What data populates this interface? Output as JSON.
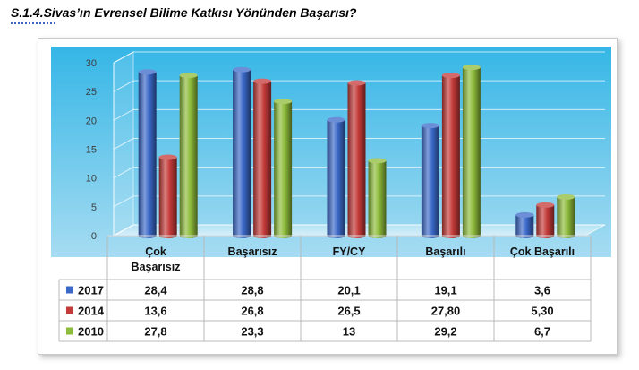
{
  "title": "S.1.4.Sivas’ın Evrensel Bilime Katkısı Yönünden Başarısı?",
  "chart_data": {
    "type": "bar",
    "categories": [
      [
        "Çok",
        "Başarısız"
      ],
      [
        "Başarısız"
      ],
      [
        "FY/CY"
      ],
      [
        "Başarılı"
      ],
      [
        "Çok Başarılı"
      ]
    ],
    "ylim": [
      0,
      30
    ],
    "yticks": [
      0,
      5,
      10,
      15,
      20,
      25,
      30
    ],
    "series": [
      {
        "name": "2017",
        "color": "#3a68c8",
        "values": [
          28.4,
          28.8,
          20.1,
          19.1,
          3.6
        ],
        "labels": [
          "28,4",
          "28,8",
          "20,1",
          "19,1",
          "3,6"
        ]
      },
      {
        "name": "2014",
        "color": "#c33a38",
        "values": [
          13.6,
          26.8,
          26.5,
          27.8,
          5.3
        ],
        "labels": [
          "13,6",
          "26,8",
          "26,5",
          "27,80",
          "5,30"
        ]
      },
      {
        "name": "2010",
        "color": "#8dbb3a",
        "values": [
          27.8,
          23.3,
          13,
          29.2,
          6.7
        ],
        "labels": [
          "27,8",
          "23,3",
          "13",
          "29,2",
          "6,7"
        ]
      }
    ],
    "grid": true,
    "legend": "data-table"
  }
}
